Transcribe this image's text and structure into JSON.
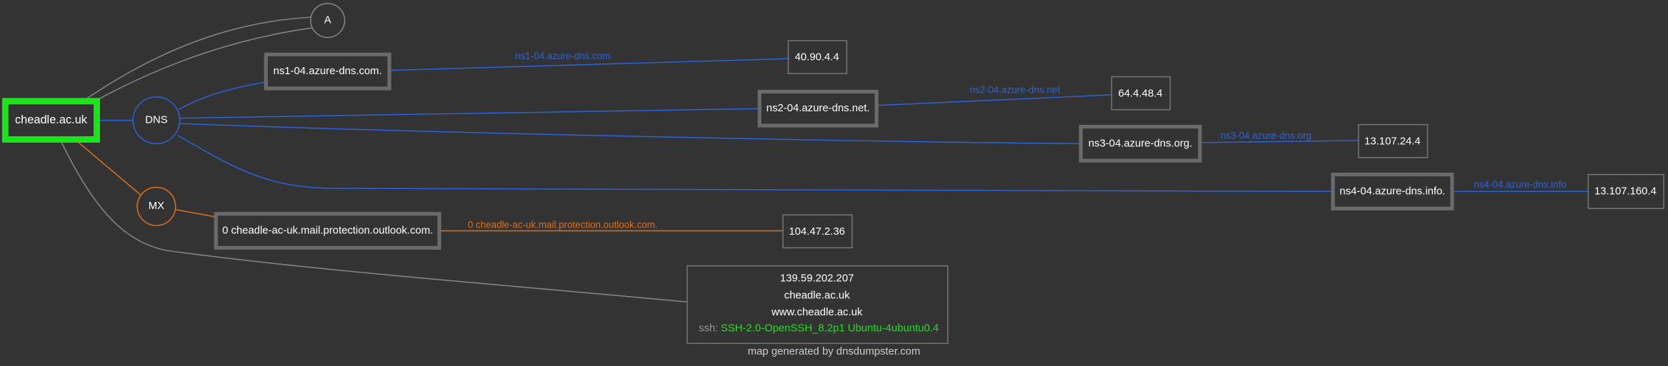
{
  "nodes": {
    "root": "cheadle.ac.uk",
    "a": "A",
    "dns": "DNS",
    "mx": "MX",
    "ns1": "ns1-04.azure-dns.com.",
    "ns2": "ns2-04.azure-dns.net.",
    "ns3": "ns3-04.azure-dns.org.",
    "ns4": "ns4-04.azure-dns.info.",
    "ip1": "40.90.4.4",
    "ip2": "64.4.48.4",
    "ip3": "13.107.24.4",
    "ip4": "13.107.160.4",
    "mxhost": "0 cheadle-ac-uk.mail.protection.outlook.com.",
    "mxip": "104.47.2.36",
    "host": {
      "ip": "139.59.202.207",
      "names": [
        "cheadle.ac.uk",
        "www.cheadle.ac.uk"
      ],
      "banner_key": "ssh:",
      "banner": "SSH-2.0-OpenSSH_8.2p1 Ubuntu-4ubuntu0.4"
    }
  },
  "edges": {
    "ns1": "ns1-04.azure-dns.com",
    "ns2": "ns2-04.azure-dns.net",
    "ns3": "ns3-04.azure-dns.org",
    "ns4": "ns4-04.azure-dns.info",
    "mx": "0 cheadle-ac-uk.mail.protection.outlook.com."
  },
  "footer": "map generated by dnsdumpster.com"
}
